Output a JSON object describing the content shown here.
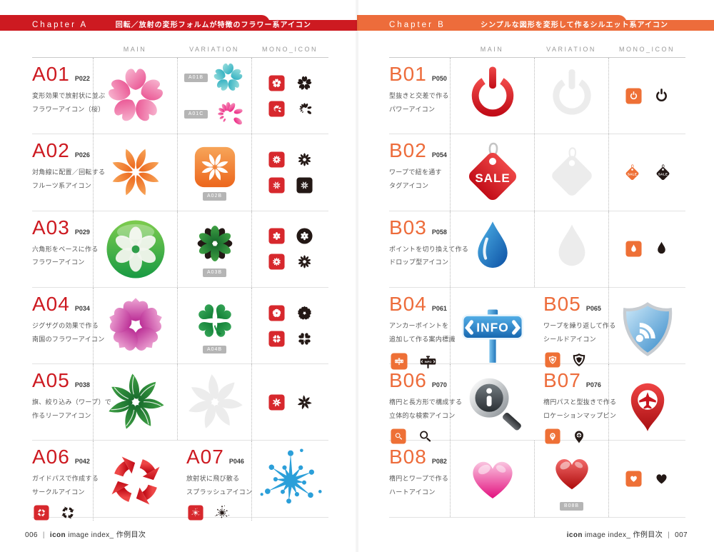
{
  "palette": {
    "chapter_a_red": "#cd1a21",
    "chapter_b_orange": "#ed6c3b",
    "mono_red": "#d7282d",
    "mono_orange": "#ee7036",
    "mono_black": "#231815"
  },
  "footer_left": {
    "page": "006",
    "sep": "|",
    "brand": "icon",
    "rest": " image index_ 作例目次"
  },
  "footer_right": {
    "brand": "icon",
    "rest": " image index_ 作例目次",
    "sep": "|",
    "page": "007"
  },
  "pages": [
    {
      "side": "left",
      "accent": "#cd1a21",
      "chapter": {
        "label": "Chapter A",
        "subtitle": "回転／放射の変形フォルムが特徴のフラワー系アイコン"
      },
      "columns": [
        "MAIN",
        "VARIATION",
        "MONO_ICON"
      ],
      "rows": [
        {
          "kind": "full",
          "code": "A01",
          "page": "P022",
          "desc": [
            "変形効果で放射状に並ぶ",
            "フラワーアイコン（桜）"
          ],
          "main": {
            "icon": "sakura",
            "style": "color"
          },
          "var_layout": "stacked",
          "variations": [
            {
              "tag": "A01B",
              "icon": "sakura",
              "style": "color-teal"
            },
            {
              "tag": "A01C",
              "icon": "petal-swirl",
              "style": "color"
            }
          ],
          "mono": [
            [
              {
                "icon": "sakura",
                "style": "on-red"
              },
              {
                "icon": "sakura",
                "style": "black"
              }
            ],
            [
              {
                "icon": "petal-swirl",
                "style": "on-red"
              },
              {
                "icon": "petal-swirl",
                "style": "black"
              }
            ]
          ]
        },
        {
          "kind": "full",
          "code": "A02",
          "page": "P026",
          "desc": [
            "対角線に配置／回転する",
            "フルーツ系アイコン"
          ],
          "main": {
            "icon": "flower8",
            "style": "color"
          },
          "var_layout": "single",
          "variations": [
            {
              "tag": "A02B",
              "icon": "flower8",
              "style": "app"
            }
          ],
          "mono": [
            [
              {
                "icon": "flower10",
                "style": "on-red"
              },
              {
                "icon": "flower10",
                "style": "black"
              }
            ],
            [
              {
                "icon": "flower8",
                "style": "on-red"
              },
              {
                "icon": "flower8",
                "style": "on-black"
              }
            ]
          ]
        },
        {
          "kind": "full",
          "code": "A03",
          "page": "P029",
          "desc": [
            "六角形をベースに作る",
            "フラワーアイコン"
          ],
          "main": {
            "icon": "glossy-flower",
            "style": "color"
          },
          "var_layout": "single",
          "variations": [
            {
              "tag": "A03B",
              "icon": "flower12",
              "style": "color"
            }
          ],
          "mono": [
            [
              {
                "icon": "flower6",
                "style": "on-red"
              },
              {
                "icon": "flower6",
                "style": "on-black-circle"
              }
            ],
            [
              {
                "icon": "flower10",
                "style": "on-red"
              },
              {
                "icon": "flower10",
                "style": "black"
              }
            ]
          ]
        },
        {
          "kind": "full",
          "code": "A04",
          "page": "P034",
          "desc": [
            "ジグザグの効果で作る",
            "南国のフラワーアイコン"
          ],
          "main": {
            "icon": "hibiscus",
            "style": "color"
          },
          "var_layout": "single",
          "variations": [
            {
              "tag": "A04B",
              "icon": "clover",
              "style": "color"
            }
          ],
          "mono": [
            [
              {
                "icon": "hibiscus",
                "style": "on-red"
              },
              {
                "icon": "hibiscus",
                "style": "black"
              }
            ],
            [
              {
                "icon": "clover",
                "style": "on-red"
              },
              {
                "icon": "clover",
                "style": "black"
              }
            ]
          ]
        },
        {
          "kind": "full",
          "code": "A05",
          "page": "P038",
          "desc": [
            "旗、絞り込み（ワープ）で",
            "作るリーフアイコン"
          ],
          "main": {
            "icon": "leaf-pinwheel",
            "style": "color"
          },
          "var_layout": "single",
          "variations": [
            {
              "icon": "leaf-pinwheel",
              "style": "ghost"
            }
          ],
          "mono": [
            [
              {
                "icon": "leaf-pinwheel",
                "style": "on-red"
              },
              {
                "icon": "leaf-pinwheel",
                "style": "black"
              }
            ]
          ]
        },
        {
          "kind": "split",
          "cells": [
            {
              "code": "A06",
              "page": "P042",
              "desc": [
                "ガイドパスで作成する",
                "サークルアイコン"
              ],
              "mono": [
                {
                  "icon": "circ-arrows",
                  "style": "on-red"
                },
                {
                  "icon": "circ-arrows",
                  "style": "black"
                }
              ],
              "main": {
                "icon": "circ-arrows",
                "style": "color"
              }
            },
            {
              "code": "A07",
              "page": "P046",
              "desc": [
                "放射状に飛び散る",
                "スプラッシュアイコン"
              ],
              "mono": [
                {
                  "icon": "splash",
                  "style": "on-red"
                },
                {
                  "icon": "splash",
                  "style": "black"
                }
              ],
              "main": {
                "icon": "splash",
                "style": "color"
              }
            }
          ]
        }
      ]
    },
    {
      "side": "right",
      "accent": "#ed6c3b",
      "chapter": {
        "label": "Chapter B",
        "subtitle": "シンプルな図形を変形して作るシルエット系アイコン"
      },
      "columns": [
        "MAIN",
        "VARIATION",
        "MONO_ICON"
      ],
      "rows": [
        {
          "kind": "full",
          "code": "B01",
          "page": "P050",
          "desc": [
            "型抜きと交差で作る",
            "パワーアイコン"
          ],
          "main": {
            "icon": "power",
            "style": "color"
          },
          "var_layout": "single",
          "variations": [
            {
              "icon": "power",
              "style": "ghost"
            }
          ],
          "mono": [
            [
              {
                "icon": "power",
                "style": "on-orange"
              },
              {
                "icon": "power",
                "style": "black"
              }
            ]
          ]
        },
        {
          "kind": "full",
          "code": "B02",
          "page": "P054",
          "desc": [
            "ワープで紐を通す",
            "タグアイコン"
          ],
          "main": {
            "icon": "sale-tag",
            "style": "color",
            "label": "SALE"
          },
          "var_layout": "single",
          "variations": [
            {
              "icon": "sale-tag",
              "style": "ghost"
            }
          ],
          "mono": [
            [
              {
                "icon": "sale-tag",
                "style": "flat-orange",
                "label": "SALE"
              },
              {
                "icon": "sale-tag",
                "style": "black",
                "label": "SALE"
              }
            ]
          ]
        },
        {
          "kind": "full",
          "code": "B03",
          "page": "P058",
          "desc": [
            "ポイントを切り換えて作る",
            "ドロップ型アイコン"
          ],
          "main": {
            "icon": "drop",
            "style": "color"
          },
          "var_layout": "single",
          "variations": [
            {
              "icon": "drop",
              "style": "ghost"
            }
          ],
          "mono": [
            [
              {
                "icon": "drop",
                "style": "on-orange"
              },
              {
                "icon": "drop",
                "style": "black"
              }
            ]
          ]
        },
        {
          "kind": "split",
          "cells": [
            {
              "code": "B04",
              "page": "P061",
              "desc": [
                "アンカーポイントを",
                "追加して作る案内標識"
              ],
              "mono": [
                {
                  "icon": "info-sign",
                  "style": "on-orange",
                  "label": "INFO"
                },
                {
                  "icon": "info-sign",
                  "style": "black",
                  "label": "INFO"
                }
              ],
              "main": {
                "icon": "info-sign",
                "style": "color",
                "label": "INFO"
              }
            },
            {
              "code": "B05",
              "page": "P065",
              "desc": [
                "ワープを繰り返して作る",
                "シールドアイコン"
              ],
              "mono": [
                {
                  "icon": "shield",
                  "style": "on-orange"
                },
                {
                  "icon": "shield",
                  "style": "black"
                }
              ],
              "main": {
                "icon": "shield",
                "style": "color"
              }
            }
          ]
        },
        {
          "kind": "split",
          "cells": [
            {
              "code": "B06",
              "page": "P070",
              "desc": [
                "楕円と長方形で構成する",
                "立体的な検索アイコン"
              ],
              "mono": [
                {
                  "icon": "magnifier",
                  "style": "on-orange"
                },
                {
                  "icon": "magnifier",
                  "style": "black"
                }
              ],
              "main": {
                "icon": "magnifier",
                "style": "color"
              }
            },
            {
              "code": "B07",
              "page": "P076",
              "desc": [
                "楕円パスと型抜きで作る",
                "ロケーションマップピン"
              ],
              "mono": [
                {
                  "icon": "map-pin",
                  "style": "on-orange"
                },
                {
                  "icon": "map-pin",
                  "style": "black"
                }
              ],
              "main": {
                "icon": "map-pin",
                "style": "color"
              }
            }
          ]
        },
        {
          "kind": "full",
          "code": "B08",
          "page": "P082",
          "desc": [
            "楕円とワープで作る",
            "ハートアイコン"
          ],
          "main": {
            "icon": "heart",
            "style": "color-pink"
          },
          "var_layout": "single",
          "variations": [
            {
              "tag": "B08B",
              "icon": "heart",
              "style": "color-red"
            }
          ],
          "mono": [
            [
              {
                "icon": "heart",
                "style": "on-orange"
              },
              {
                "icon": "heart",
                "style": "black"
              }
            ]
          ]
        }
      ]
    }
  ]
}
